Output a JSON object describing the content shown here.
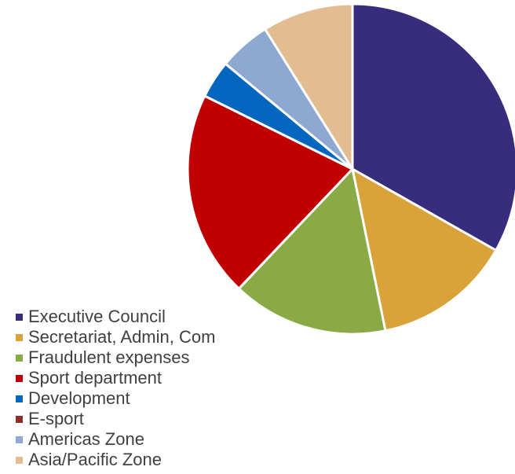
{
  "chart_data": {
    "type": "pie",
    "title": "",
    "legend_position": "bottom-left",
    "slices": [
      {
        "label": "Executive Council",
        "value": 33.2,
        "color": "#372D7C"
      },
      {
        "label": "Secretariat, Admin, Com",
        "value": 13.6,
        "color": "#D9A33A"
      },
      {
        "label": "Fraudulent expenses",
        "value": 15.3,
        "color": "#8AAA46"
      },
      {
        "label": "Sport department",
        "value": 20.2,
        "color": "#C00000"
      },
      {
        "label": "Development",
        "value": 3.7,
        "color": "#0566C0"
      },
      {
        "label": "E-sport",
        "value": 0.0,
        "color": "#8B2E2E"
      },
      {
        "label": "Americas Zone",
        "value": 5.1,
        "color": "#8EA9D1"
      },
      {
        "label": "Asia/Pacific Zone",
        "value": 8.9,
        "color": "#E2BD92"
      }
    ]
  }
}
